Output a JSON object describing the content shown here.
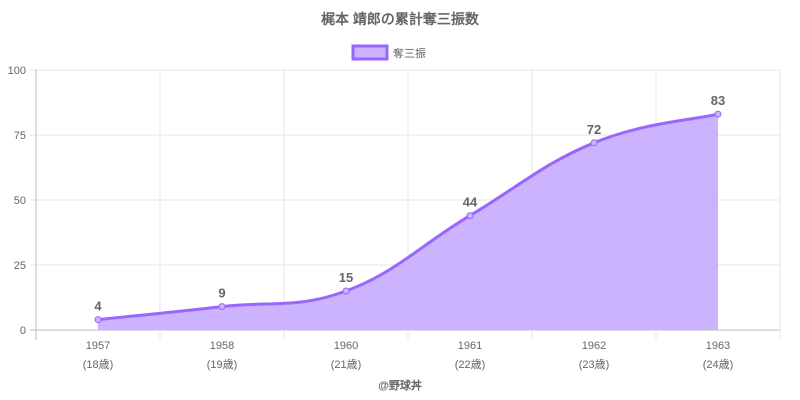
{
  "chart_data": {
    "type": "area",
    "title": "梶本 靖郎の累計奪三振数",
    "categories": [
      "1957",
      "1958",
      "1960",
      "1961",
      "1962",
      "1963"
    ],
    "sublabels": [
      "(18歳)",
      "(19歳)",
      "(21歳)",
      "(22歳)",
      "(23歳)",
      "(24歳)"
    ],
    "series": [
      {
        "name": "奪三振",
        "values": [
          4,
          9,
          15,
          44,
          72,
          83
        ]
      }
    ],
    "ylim": [
      0,
      100
    ],
    "yticks": [
      0,
      25,
      50,
      75,
      100
    ],
    "grid": true,
    "legend": "top",
    "colors": {
      "line": "#9966ff",
      "fill": "#ccb3ff",
      "text": "#666666",
      "grid": "#e5e5e5"
    }
  },
  "footer": "@野球丼"
}
